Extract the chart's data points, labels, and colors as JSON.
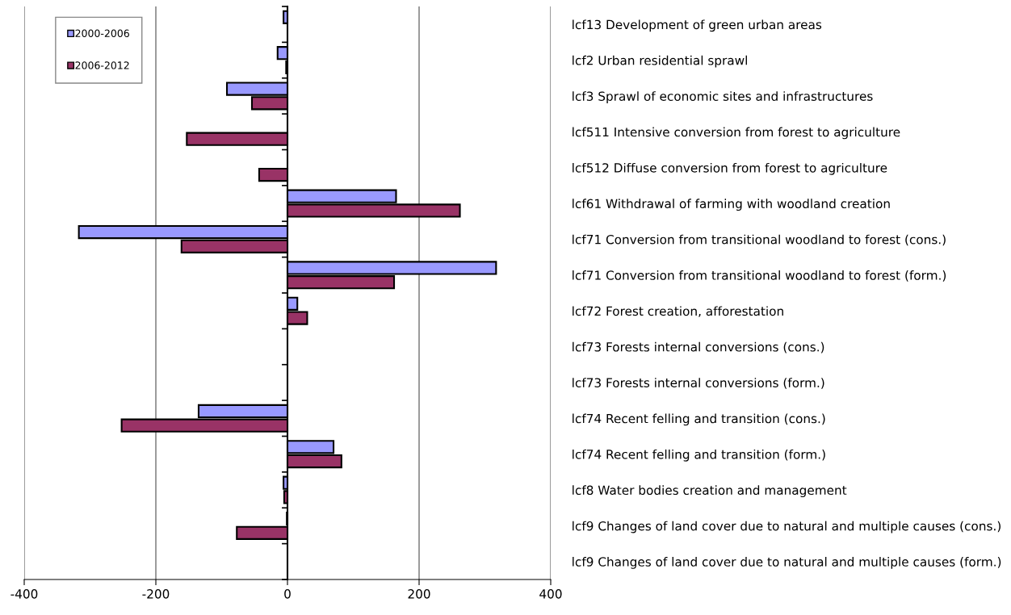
{
  "chart_data": {
    "type": "bar",
    "orientation": "horizontal",
    "categories": [
      "lcf13 Development of green urban areas",
      "lcf2 Urban residential sprawl",
      "lcf3 Sprawl of economic sites and infrastructures",
      "lcf511 Intensive conversion from forest to agriculture",
      "lcf512 Diffuse conversion from forest to agriculture",
      "lcf61 Withdrawal of farming with woodland creation",
      "lcf71 Conversion from transitional woodland to forest (cons.)",
      "lcf71 Conversion from transitional woodland to forest (form.)",
      "lcf72 Forest creation, afforestation",
      "lcf73 Forests internal conversions (cons.)",
      "lcf73 Forests internal conversions (form.)",
      "lcf74 Recent felling and transition (cons.)",
      "lcf74 Recent felling and transition (form.)",
      "lcf8 Water bodies creation and management",
      "lcf9 Changes of land cover due to natural and multiple causes (cons.)",
      "lcf9 Changes of land cover due to natural and multiple causes (form.)"
    ],
    "series": [
      {
        "name": "2000-2006",
        "color": "#9999ff",
        "values": [
          -6,
          -15,
          -92,
          null,
          null,
          165,
          -317,
          317,
          15,
          null,
          null,
          -135,
          70,
          -6,
          -1,
          null
        ]
      },
      {
        "name": "2006-2012",
        "color": "#993366",
        "values": [
          null,
          -2,
          -54,
          -153,
          -43,
          262,
          -161,
          162,
          30,
          null,
          null,
          -252,
          82,
          -5,
          -77,
          null
        ]
      }
    ],
    "xlim": [
      -400,
      400
    ],
    "xticks": [
      -400,
      -200,
      0,
      200,
      400
    ],
    "grid": "x",
    "legend": "top left"
  }
}
